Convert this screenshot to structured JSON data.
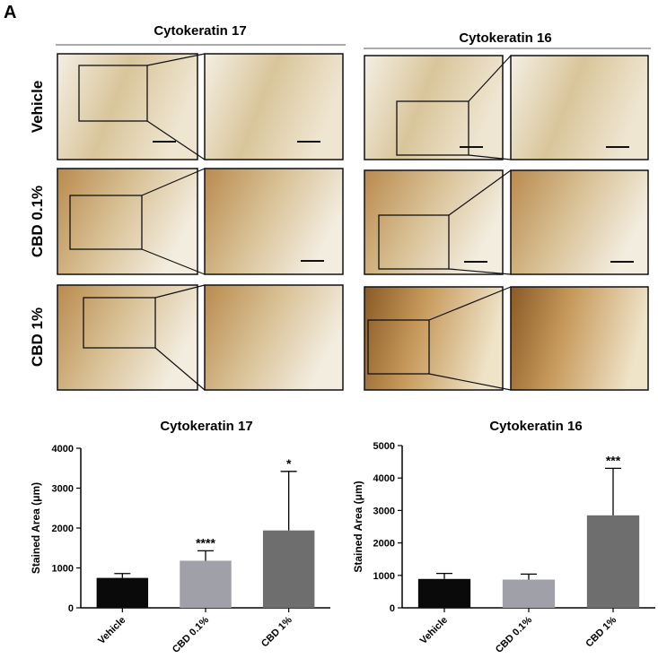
{
  "panel_label": "A",
  "image_grid": {
    "columns": [
      "Cytokeratin 17",
      "Cytokeratin 16"
    ],
    "rows": [
      "Vehicle",
      "CBD 0.1%",
      "CBD 1%"
    ]
  },
  "chart_data": [
    {
      "type": "bar",
      "title": "Cytokeratin 17",
      "y_label": "Stained Area (μm)",
      "categories": [
        "Vehicle",
        "CBD 0.1%",
        "CBD 1%"
      ],
      "values": [
        750,
        1180,
        1940
      ],
      "errors": [
        110,
        250,
        1480
      ],
      "significance": [
        null,
        "****",
        "*"
      ],
      "colors": [
        "#0a0a0a",
        "#a0a0a8",
        "#6e6e6e"
      ],
      "ylim": [
        0,
        4000
      ],
      "yticks": [
        0,
        1000,
        2000,
        3000,
        4000
      ]
    },
    {
      "type": "bar",
      "title": "Cytokeratin 16",
      "y_label": "Stained Area (μm)",
      "categories": [
        "Vehicle",
        "CBD 0.1%",
        "CBD 1%"
      ],
      "values": [
        890,
        870,
        2850
      ],
      "errors": [
        170,
        170,
        1450
      ],
      "significance": [
        null,
        null,
        "***"
      ],
      "colors": [
        "#0a0a0a",
        "#a0a0a8",
        "#6e6e6e"
      ],
      "ylim": [
        0,
        5000
      ],
      "yticks": [
        0,
        1000,
        2000,
        3000,
        4000,
        5000
      ]
    }
  ]
}
